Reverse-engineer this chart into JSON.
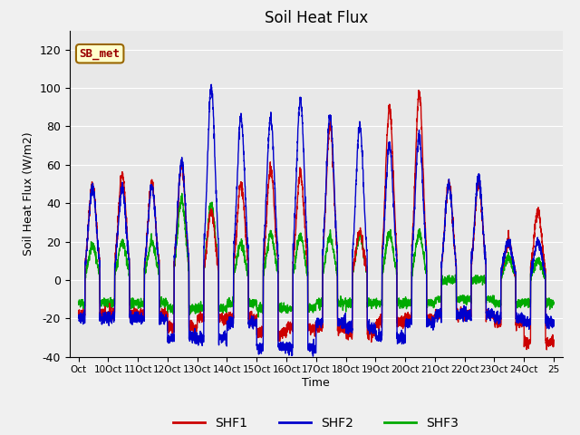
{
  "title": "Soil Heat Flux",
  "ylabel": "Soil Heat Flux (W/m2)",
  "xlabel": "Time",
  "ylim": [
    -40,
    130
  ],
  "yticks": [
    -40,
    -20,
    0,
    20,
    40,
    60,
    80,
    100,
    120
  ],
  "xtick_labels": [
    "Oct",
    "10Oct",
    "11Oct",
    "12Oct",
    "13Oct",
    "14Oct",
    "15Oct",
    "16Oct",
    "17Oct",
    "18Oct",
    "19Oct",
    "20Oct",
    "21Oct",
    "22Oct",
    "23Oct",
    "24Oct",
    "25"
  ],
  "line_colors": {
    "SHF1": "#cc0000",
    "SHF2": "#0000cc",
    "SHF3": "#00aa00"
  },
  "line_width": 1.0,
  "annotation_text": "SB_met",
  "bg_color": "#f0f0f0",
  "plot_bg_color": "#e8e8e8",
  "grid_color": "#ffffff",
  "n_points": 3200,
  "shf1_amps": [
    50,
    55,
    50,
    60,
    35,
    50,
    58,
    55,
    80,
    25,
    90,
    97,
    50,
    50,
    20,
    36
  ],
  "shf2_amps": [
    48,
    48,
    48,
    62,
    100,
    85,
    85,
    94,
    86,
    80,
    70,
    75,
    50,
    54,
    20,
    20
  ],
  "shf3_amps": [
    18,
    20,
    20,
    42,
    40,
    19,
    24,
    23,
    23,
    23,
    24,
    24,
    0,
    0,
    12,
    10
  ],
  "shf1_night": [
    -18,
    -18,
    -18,
    -25,
    -20,
    -20,
    -28,
    -25,
    -25,
    -28,
    -22,
    -20,
    -18,
    -18,
    -22,
    -32
  ],
  "shf2_night": [
    -20,
    -20,
    -20,
    -30,
    -30,
    -22,
    -35,
    -35,
    -22,
    -25,
    -30,
    -22,
    -18,
    -18,
    -20,
    -22
  ],
  "shf3_night": [
    -12,
    -12,
    -12,
    -15,
    -15,
    -12,
    -15,
    -15,
    -12,
    -12,
    -12,
    -12,
    -10,
    -10,
    -12,
    -12
  ]
}
